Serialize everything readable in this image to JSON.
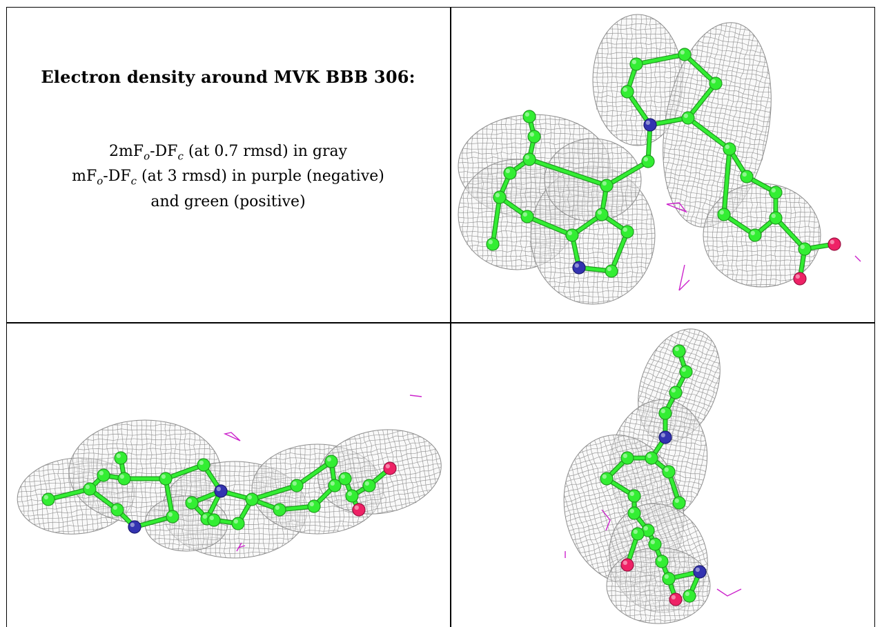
{
  "caption": {
    "title": "Electron density around MVK BBB 306:",
    "line1": {
      "a": "2mF",
      "b": "o",
      "c": "-DF",
      "d": "c",
      "e": " (at 0.7 rmsd) in gray"
    },
    "line2": {
      "a": "mF",
      "b": "o",
      "c": "-DF",
      "d": "c",
      "e": " (at 3 rmsd) in purple (negative)"
    },
    "line3": "and green (positive)"
  },
  "colors": {
    "mesh": "#8c8c8c",
    "carbon": "#33ee33",
    "nitrogen": "#3333b0",
    "oxygen": "#ee2266",
    "negative_density": "#cc22cc"
  },
  "panels": [
    {
      "id": "view-top-right"
    },
    {
      "id": "view-bottom-left"
    },
    {
      "id": "view-bottom-right"
    }
  ]
}
